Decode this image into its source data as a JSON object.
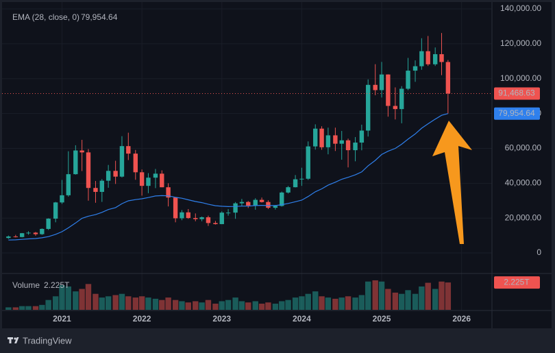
{
  "chart_data": {
    "type": "candlestick",
    "x": [
      2020.33,
      2020.42,
      2020.5,
      2020.58,
      2020.67,
      2020.75,
      2020.83,
      2020.92,
      2021,
      2021.08,
      2021.17,
      2021.25,
      2021.33,
      2021.42,
      2021.5,
      2021.58,
      2021.67,
      2021.75,
      2021.83,
      2021.92,
      2022,
      2022.08,
      2022.17,
      2022.25,
      2022.33,
      2022.42,
      2022.5,
      2022.58,
      2022.67,
      2022.75,
      2022.83,
      2022.92,
      2023,
      2023.08,
      2023.17,
      2023.25,
      2023.33,
      2023.42,
      2023.5,
      2023.58,
      2023.67,
      2023.75,
      2023.83,
      2023.92,
      2024,
      2024.08,
      2024.17,
      2024.25,
      2024.33,
      2024.42,
      2024.5,
      2024.58,
      2024.67,
      2024.75,
      2024.83,
      2024.92,
      2025,
      2025.08,
      2025.17,
      2025.25,
      2025.33,
      2025.42,
      2025.5,
      2025.58,
      2025.67,
      2025.75,
      2025.83
    ],
    "open": [
      8600,
      9450,
      9140,
      11350,
      11650,
      10780,
      13800,
      19700,
      28990,
      33100,
      45200,
      58800,
      57700,
      37300,
      35040,
      41460,
      47100,
      43800,
      61300,
      57000,
      46300,
      38500,
      43200,
      45500,
      37700,
      31800,
      19900,
      23300,
      20050,
      19420,
      20490,
      17170,
      16550,
      23140,
      23150,
      28480,
      29250,
      27200,
      30480,
      29230,
      25940,
      26970,
      34670,
      37720,
      42280,
      42580,
      61130,
      71330,
      60640,
      67490,
      62680,
      64620,
      58970,
      63330,
      70220,
      96450,
      93430,
      102400,
      84370,
      82550,
      94210,
      104600,
      107140,
      115760,
      108250,
      114050,
      109550
    ],
    "high": [
      10000,
      10400,
      11450,
      12470,
      12080,
      14100,
      19900,
      29300,
      41900,
      58350,
      61800,
      64900,
      59600,
      41300,
      42400,
      50500,
      52900,
      67000,
      69000,
      59100,
      47900,
      45800,
      48200,
      47400,
      40000,
      31900,
      24600,
      25200,
      22700,
      20900,
      21400,
      18400,
      23900,
      25200,
      29200,
      31000,
      29800,
      31400,
      31800,
      30200,
      27500,
      35200,
      38400,
      44700,
      48900,
      64000,
      73800,
      72700,
      71900,
      71900,
      70000,
      65600,
      66500,
      73600,
      99600,
      108300,
      109600,
      102500,
      95000,
      95700,
      111900,
      110500,
      123200,
      124500,
      117900,
      126200,
      110700
    ],
    "low": [
      8100,
      8900,
      8950,
      10500,
      9880,
      10400,
      13200,
      17600,
      28150,
      32300,
      44950,
      47000,
      30000,
      28800,
      29300,
      37400,
      39600,
      43300,
      53300,
      42000,
      32900,
      34300,
      37200,
      37700,
      26700,
      17600,
      18800,
      19600,
      18200,
      18200,
      15500,
      16300,
      16500,
      21400,
      19600,
      26900,
      25800,
      24800,
      28900,
      25200,
      24900,
      26600,
      34100,
      37600,
      38500,
      41900,
      59300,
      59200,
      56600,
      58500,
      53500,
      49100,
      52600,
      58900,
      66800,
      90500,
      89200,
      78200,
      76600,
      74400,
      93400,
      98200,
      105100,
      107300,
      107300,
      102000,
      80000
    ],
    "close": [
      9450,
      9140,
      11350,
      11650,
      10780,
      13800,
      19700,
      28990,
      33100,
      45200,
      58800,
      57700,
      37300,
      35040,
      41460,
      47100,
      43800,
      61300,
      57000,
      46300,
      38500,
      43200,
      45500,
      37700,
      31800,
      19900,
      23300,
      20050,
      19420,
      20490,
      17170,
      16550,
      23140,
      23150,
      28480,
      29250,
      27200,
      30480,
      29230,
      25940,
      26970,
      34670,
      37720,
      42280,
      42580,
      61130,
      71330,
      60640,
      67490,
      62680,
      64620,
      58970,
      63330,
      70220,
      96450,
      93430,
      102400,
      84370,
      82550,
      94210,
      104600,
      107140,
      115760,
      108250,
      114050,
      109550,
      {
        "value": 91468.63,
        "label": "91,468.63"
      }
    ],
    "up_color": "#26a69a",
    "down_color": "#ef5350",
    "ema": {
      "name": "EMA (28, close, 0)",
      "color": "#2f80ed",
      "values": [
        7400,
        7550,
        7800,
        8100,
        8300,
        8700,
        9400,
        10700,
        12200,
        14400,
        17200,
        19900,
        21100,
        22000,
        23300,
        24900,
        26000,
        28300,
        29900,
        30600,
        31100,
        31800,
        32700,
        32900,
        32800,
        31900,
        31400,
        30500,
        29500,
        28900,
        28000,
        27100,
        26800,
        26600,
        26700,
        26900,
        26900,
        27200,
        27300,
        27200,
        27200,
        27700,
        28400,
        29400,
        30300,
        32400,
        35100,
        36800,
        38900,
        40600,
        42300,
        43400,
        44800,
        46500,
        50000,
        53100,
        56500,
        58400,
        60000,
        62400,
        65300,
        68300,
        71600,
        74100,
        76800,
        79000,
        {
          "value": 79954.64,
          "label": "79,954.64"
        }
      ]
    },
    "volume": {
      "name": "Volume",
      "values": [
        0.2,
        0.2,
        0.3,
        0.3,
        0.3,
        0.4,
        0.8,
        1.1,
        2.0,
        1.9,
        1.5,
        1.7,
        2.1,
        1.3,
        1.0,
        1.1,
        1.2,
        1.3,
        1.1,
        1.0,
        1.1,
        1.0,
        0.9,
        0.8,
        1.0,
        0.8,
        0.7,
        0.6,
        0.7,
        0.6,
        0.8,
        0.5,
        0.7,
        0.8,
        1.0,
        0.7,
        0.6,
        0.7,
        0.5,
        0.6,
        0.5,
        0.7,
        0.8,
        1.0,
        1.1,
        1.3,
        1.5,
        1.1,
        1.0,
        0.9,
        1.0,
        1.1,
        1.0,
        1.2,
        2.3,
        2.4,
        2.3,
        1.7,
        1.4,
        1.3,
        1.6,
        1.3,
        1.9,
        2.2,
        1.7,
        2.3,
        {
          "value": 2.225,
          "label": "2.225T"
        }
      ],
      "ylim": [
        0,
        2.9
      ]
    },
    "xlim": [
      2020.31,
      2026.38
    ],
    "xticks": [
      2021,
      2022,
      2023,
      2024,
      2025,
      2026
    ],
    "ylim": [
      -10200,
      141200
    ],
    "yticks": [
      0,
      {
        "value": 20000,
        "label": "20,000.00"
      },
      {
        "value": 40000,
        "label": "40,000.00"
      },
      {
        "value": 60000,
        "label": "60,000.00"
      },
      {
        "value": 80000,
        "label": "80,000.00"
      },
      {
        "value": 100000,
        "label": "100,000.00"
      },
      {
        "value": 120000,
        "label": "120,000.00"
      },
      {
        "value": 140000,
        "label": "140,000.00"
      }
    ],
    "grid": true
  },
  "footer": {
    "brand": "TradingView"
  }
}
